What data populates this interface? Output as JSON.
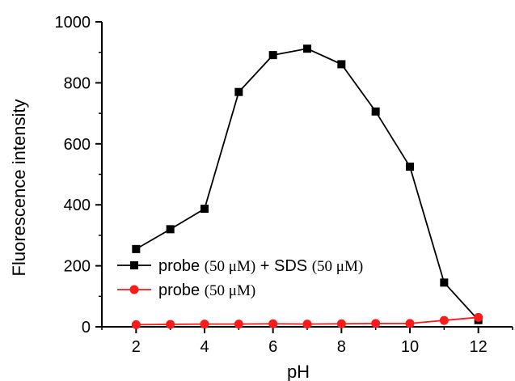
{
  "chart_data": {
    "type": "line",
    "xlabel": "pH",
    "ylabel": "Fluorescence intensity",
    "xlim": [
      1,
      13
    ],
    "ylim": [
      0,
      1000
    ],
    "x_ticks": [
      2,
      4,
      6,
      8,
      10,
      12
    ],
    "y_ticks": [
      0,
      200,
      400,
      600,
      800,
      1000
    ],
    "x_tick_labels": [
      "2",
      "4",
      "6",
      "8",
      "10",
      "12"
    ],
    "y_tick_labels": [
      "0",
      "200",
      "400",
      "600",
      "800",
      "1000"
    ],
    "grid": false,
    "legend_position": "bottom-left",
    "series": [
      {
        "name_parts": [
          "probe ",
          "(50 μM)",
          " + SDS ",
          "(50 μM)"
        ],
        "marker": "square",
        "color": "#000000",
        "x": [
          2,
          3,
          4,
          5,
          6,
          7,
          8,
          9,
          10,
          11,
          12
        ],
        "values": [
          255,
          320,
          387,
          770,
          891,
          912,
          861,
          706,
          525,
          145,
          22
        ]
      },
      {
        "name_parts": [
          "probe ",
          "(50 μM)"
        ],
        "marker": "circle",
        "color": "#ff1a1a",
        "x": [
          2,
          3,
          4,
          5,
          6,
          7,
          8,
          9,
          10,
          11,
          12
        ],
        "values": [
          7,
          8,
          9,
          9,
          10,
          9,
          10,
          11,
          11,
          21,
          31
        ]
      }
    ]
  }
}
